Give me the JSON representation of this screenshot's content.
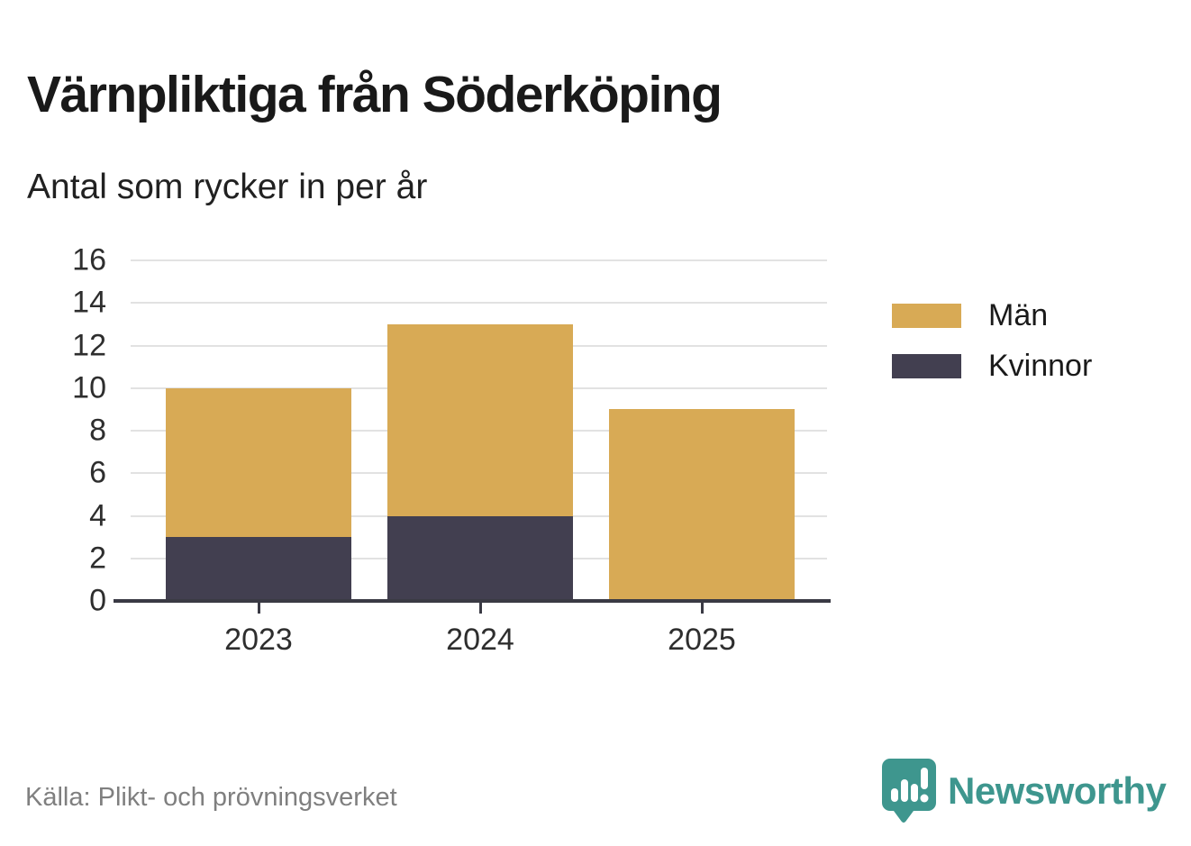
{
  "header": {
    "title": "Värnpliktiga från Söderköping",
    "subtitle": "Antal som rycker in per år"
  },
  "chart_data": {
    "type": "bar",
    "stacked": true,
    "title": "Värnpliktiga från Söderköping",
    "subtitle": "Antal som rycker in per år",
    "categories": [
      "2023",
      "2024",
      "2025"
    ],
    "series": [
      {
        "name": "Män",
        "color": "#d8aa55",
        "values": [
          7,
          9,
          9
        ]
      },
      {
        "name": "Kvinnor",
        "color": "#423f50",
        "values": [
          3,
          4,
          0
        ]
      }
    ],
    "stack_order_bottom_to_top": [
      "Kvinnor",
      "Män"
    ],
    "totals": [
      10,
      13,
      9
    ],
    "ylim": [
      0,
      16
    ],
    "yticks": [
      0,
      2,
      4,
      6,
      8,
      10,
      12,
      14,
      16
    ],
    "grid": true,
    "legend_position": "right"
  },
  "footer": {
    "source": "Källa: Plikt- och prövningsverket",
    "brand": "Newsworthy"
  },
  "colors": {
    "men_gold": "#d8aa55",
    "women_dark": "#423f50",
    "axis": "#3a3a44",
    "gridline": "#e2e2e2",
    "brand_teal": "#3e968e",
    "source_text": "#7f7f7f"
  }
}
